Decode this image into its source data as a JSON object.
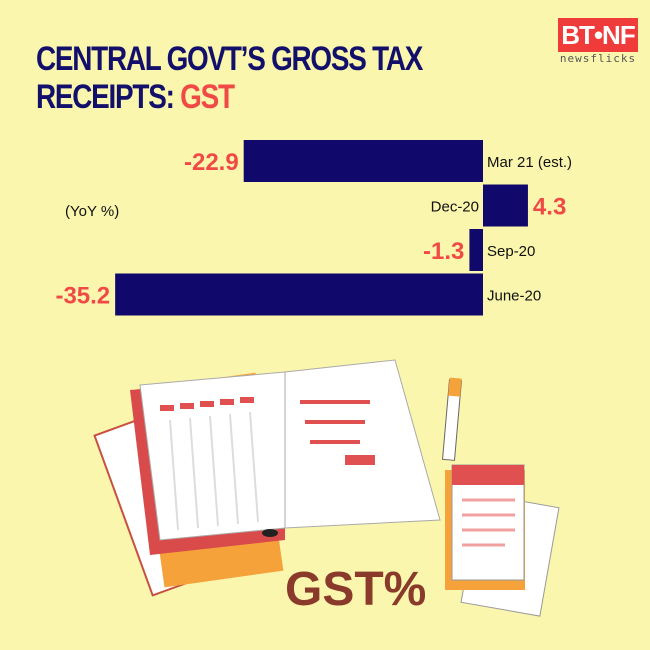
{
  "header": {
    "title_line1": "CENTRAL GOVT’S GROSS TAX",
    "title_line2": "RECEIPTS: ",
    "title_highlight": "GST"
  },
  "logo": {
    "text": "BT•NF",
    "sub": "newsflicks"
  },
  "illustration": {
    "text": "GST%"
  },
  "chart_data": {
    "type": "bar",
    "orientation": "horizontal",
    "unit_label": "(YoY %)",
    "categories": [
      "Mar 21 (est.)",
      "Dec-20",
      "Sep-20",
      "June-20"
    ],
    "values": [
      -22.9,
      4.3,
      -1.3,
      -35.2
    ],
    "value_labels": [
      "-22.9",
      "4.3",
      "-1.3",
      "-35.2"
    ],
    "grid": false,
    "colors": {
      "bar": "#10086a",
      "value_label": "#f04a47",
      "text": "#111111"
    }
  }
}
